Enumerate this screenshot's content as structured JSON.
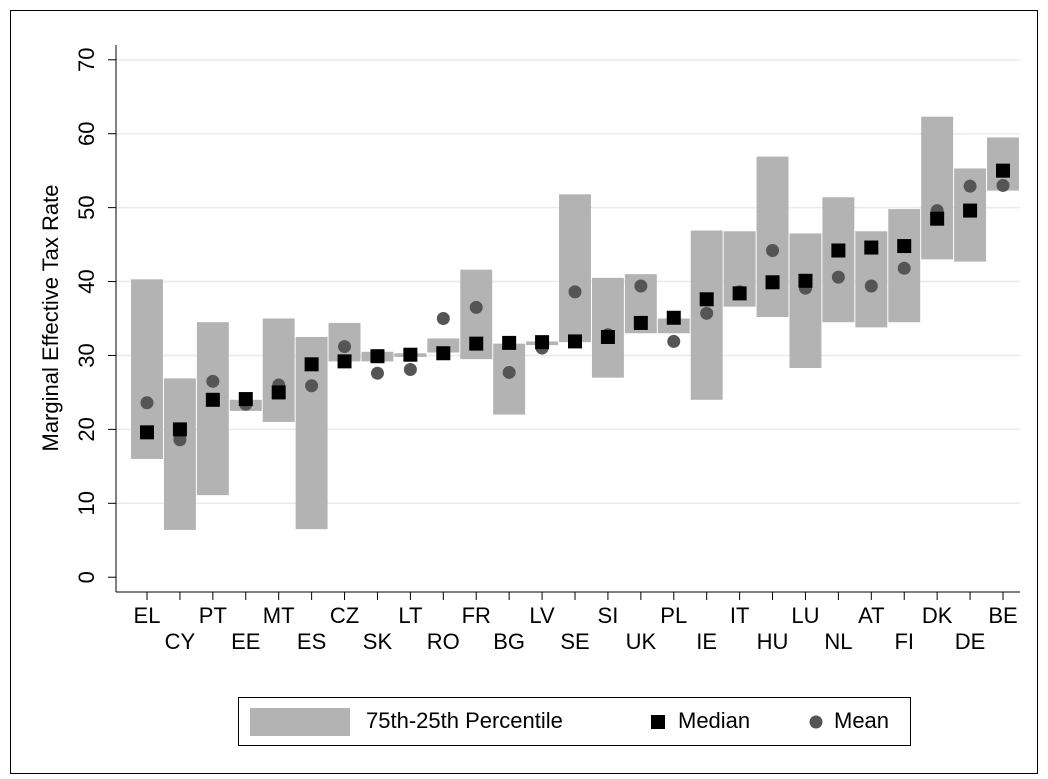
{
  "chart_data": {
    "type": "rangebar",
    "y_label": "Marginal Effective Tax Rate",
    "categories": [
      "EL",
      "CY",
      "PT",
      "EE",
      "MT",
      "ES",
      "CZ",
      "SK",
      "LT",
      "RO",
      "FR",
      "BG",
      "LV",
      "SE",
      "SI",
      "UK",
      "PL",
      "IE",
      "IT",
      "HU",
      "LU",
      "NL",
      "AT",
      "FI",
      "DK",
      "DE",
      "BE"
    ],
    "series": [
      {
        "name": "75th-25th Percentile",
        "color": "#b3b3b3",
        "low": [
          16,
          6.4,
          11.1,
          22.5,
          21,
          6.5,
          29.2,
          29.2,
          29.8,
          30.4,
          29.5,
          22,
          31.4,
          31.8,
          27,
          33,
          33,
          24,
          36.6,
          35.2,
          28.3,
          34.5,
          33.8,
          34.5,
          43,
          42.7,
          52.3
        ],
        "high": [
          40.3,
          26.9,
          34.5,
          24,
          35,
          32.5,
          34.4,
          30.5,
          30.3,
          32.3,
          41.6,
          31.6,
          31.9,
          51.8,
          40.5,
          41,
          35,
          46.9,
          46.8,
          56.9,
          46.5,
          51.4,
          46.8,
          49.8,
          62.3,
          55.3,
          59.5
        ]
      },
      {
        "name": "Median",
        "color": "#000000",
        "values": [
          19.6,
          20,
          24,
          24.1,
          25,
          28.8,
          29.2,
          29.9,
          30.1,
          30.3,
          31.6,
          31.7,
          31.8,
          31.9,
          32.5,
          34.4,
          35.1,
          37.6,
          38.4,
          39.9,
          40.1,
          44.2,
          44.6,
          44.8,
          48.5,
          49.6,
          55
        ]
      },
      {
        "name": "Mean",
        "color": "#555555",
        "values": [
          23.6,
          18.6,
          26.5,
          23.4,
          26,
          25.9,
          31.2,
          27.6,
          28.1,
          35,
          36.5,
          27.7,
          31,
          38.6,
          32.8,
          39.4,
          31.9,
          35.7,
          38.6,
          44.2,
          39.1,
          40.6,
          39.4,
          41.8,
          49.6,
          52.9,
          53
        ]
      }
    ],
    "ylim": [
      -2,
      72
    ],
    "yticks": [
      0,
      10,
      20,
      30,
      40,
      50,
      60,
      70
    ],
    "grid": true
  }
}
